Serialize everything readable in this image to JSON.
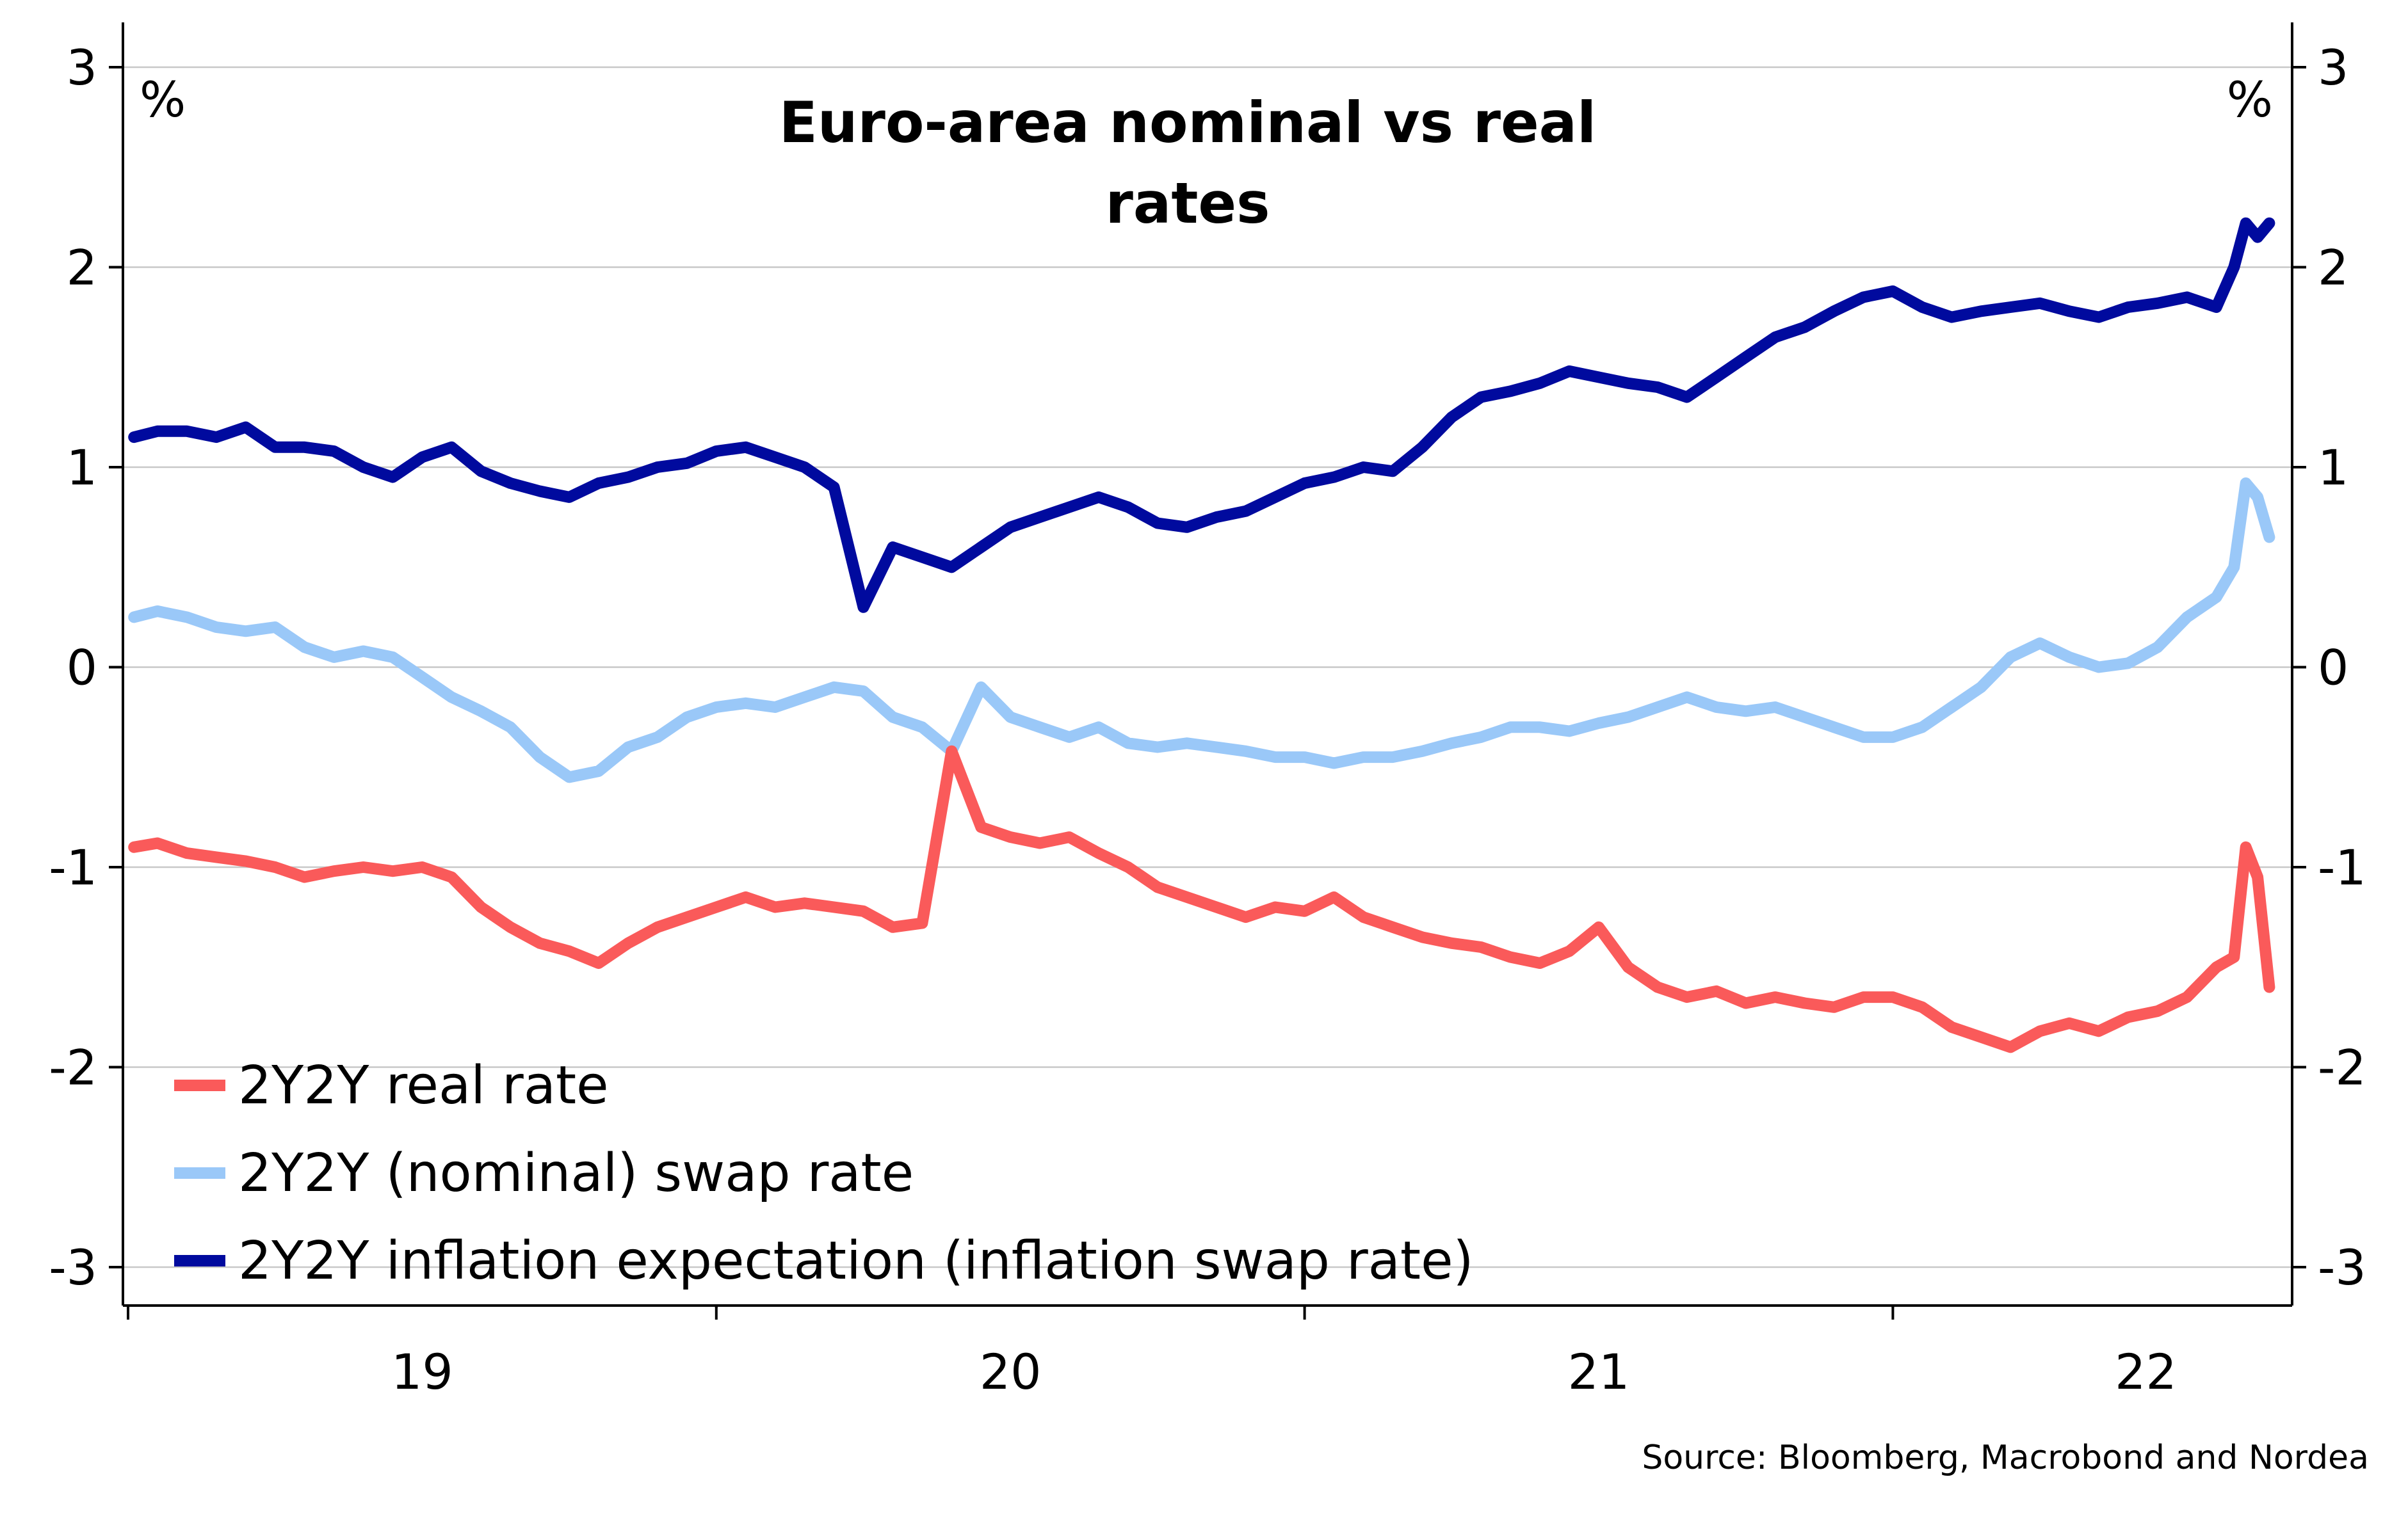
{
  "chart_data": {
    "type": "line",
    "title": "Euro-area nominal vs real rates",
    "title_lines": [
      "Euro-area nominal vs real",
      "rates"
    ],
    "left_unit": "%",
    "right_unit": "%",
    "ylim": [
      -3.15,
      3.0
    ],
    "y_ticks": [
      3,
      2,
      1,
      0,
      -1,
      -2,
      -3
    ],
    "y_tick_labels": [
      "3",
      "2",
      "1",
      "0",
      "-1",
      "-2",
      "-3"
    ],
    "xlim": [
      2018.5,
      2022.17
    ],
    "x_year_boundaries": [
      2018.5,
      2019.5,
      2020.5,
      2021.5
    ],
    "x_tick_labels": [
      "19",
      "20",
      "21",
      "22"
    ],
    "x_label_positions": [
      2019.0,
      2020.0,
      2021.0,
      2021.93
    ],
    "grid": true,
    "legend_position": "bottom-left",
    "source": "Source: Bloomberg, Macrobond and Nordea",
    "series": [
      {
        "name": "2Y2Y real rate",
        "color": "#fa5a5a",
        "x": [
          2018.51,
          2018.55,
          2018.6,
          2018.65,
          2018.7,
          2018.75,
          2018.8,
          2018.85,
          2018.9,
          2018.95,
          2019.0,
          2019.05,
          2019.1,
          2019.15,
          2019.2,
          2019.25,
          2019.3,
          2019.35,
          2019.4,
          2019.45,
          2019.5,
          2019.55,
          2019.6,
          2019.65,
          2019.7,
          2019.75,
          2019.8,
          2019.85,
          2019.9,
          2019.95,
          2020.0,
          2020.05,
          2020.1,
          2020.15,
          2020.2,
          2020.25,
          2020.3,
          2020.35,
          2020.4,
          2020.45,
          2020.5,
          2020.55,
          2020.6,
          2020.65,
          2020.7,
          2020.75,
          2020.8,
          2020.85,
          2020.9,
          2020.95,
          2021.0,
          2021.05,
          2021.1,
          2021.15,
          2021.2,
          2021.25,
          2021.3,
          2021.35,
          2021.4,
          2021.45,
          2021.5,
          2021.55,
          2021.6,
          2021.65,
          2021.7,
          2021.75,
          2021.8,
          2021.85,
          2021.9,
          2021.95,
          2022.0,
          2022.05,
          2022.08,
          2022.1,
          2022.12,
          2022.14
        ],
        "y": [
          -0.9,
          -0.88,
          -0.93,
          -0.95,
          -0.97,
          -1.0,
          -1.05,
          -1.02,
          -1.0,
          -1.02,
          -1.0,
          -1.05,
          -1.2,
          -1.3,
          -1.38,
          -1.42,
          -1.48,
          -1.38,
          -1.3,
          -1.25,
          -1.2,
          -1.15,
          -1.2,
          -1.18,
          -1.2,
          -1.22,
          -1.3,
          -1.28,
          -0.42,
          -0.8,
          -0.85,
          -0.88,
          -0.85,
          -0.93,
          -1.0,
          -1.1,
          -1.15,
          -1.2,
          -1.25,
          -1.2,
          -1.22,
          -1.15,
          -1.25,
          -1.3,
          -1.35,
          -1.38,
          -1.4,
          -1.45,
          -1.48,
          -1.42,
          -1.3,
          -1.5,
          -1.6,
          -1.65,
          -1.62,
          -1.68,
          -1.65,
          -1.68,
          -1.7,
          -1.65,
          -1.65,
          -1.7,
          -1.8,
          -1.85,
          -1.9,
          -1.82,
          -1.78,
          -1.82,
          -1.75,
          -1.72,
          -1.65,
          -1.5,
          -1.45,
          -0.9,
          -1.05,
          -1.6
        ]
      },
      {
        "name": "2Y2Y (nominal) swap rate",
        "color": "#9ac8f8",
        "x": [
          2018.51,
          2018.55,
          2018.6,
          2018.65,
          2018.7,
          2018.75,
          2018.8,
          2018.85,
          2018.9,
          2018.95,
          2019.0,
          2019.05,
          2019.1,
          2019.15,
          2019.2,
          2019.25,
          2019.3,
          2019.35,
          2019.4,
          2019.45,
          2019.5,
          2019.55,
          2019.6,
          2019.65,
          2019.7,
          2019.75,
          2019.8,
          2019.85,
          2019.9,
          2019.95,
          2020.0,
          2020.05,
          2020.1,
          2020.15,
          2020.2,
          2020.25,
          2020.3,
          2020.35,
          2020.4,
          2020.45,
          2020.5,
          2020.55,
          2020.6,
          2020.65,
          2020.7,
          2020.75,
          2020.8,
          2020.85,
          2020.9,
          2020.95,
          2021.0,
          2021.05,
          2021.1,
          2021.15,
          2021.2,
          2021.25,
          2021.3,
          2021.35,
          2021.4,
          2021.45,
          2021.5,
          2021.55,
          2021.6,
          2021.65,
          2021.7,
          2021.75,
          2021.8,
          2021.85,
          2021.9,
          2021.95,
          2022.0,
          2022.05,
          2022.08,
          2022.1,
          2022.12,
          2022.14
        ],
        "y": [
          0.25,
          0.28,
          0.25,
          0.2,
          0.18,
          0.2,
          0.1,
          0.05,
          0.08,
          0.05,
          -0.05,
          -0.15,
          -0.22,
          -0.3,
          -0.45,
          -0.55,
          -0.52,
          -0.4,
          -0.35,
          -0.25,
          -0.2,
          -0.18,
          -0.2,
          -0.15,
          -0.1,
          -0.12,
          -0.25,
          -0.3,
          -0.42,
          -0.1,
          -0.25,
          -0.3,
          -0.35,
          -0.3,
          -0.38,
          -0.4,
          -0.38,
          -0.4,
          -0.42,
          -0.45,
          -0.45,
          -0.48,
          -0.45,
          -0.45,
          -0.42,
          -0.38,
          -0.35,
          -0.3,
          -0.3,
          -0.32,
          -0.28,
          -0.25,
          -0.2,
          -0.15,
          -0.2,
          -0.22,
          -0.2,
          -0.25,
          -0.3,
          -0.35,
          -0.35,
          -0.3,
          -0.2,
          -0.1,
          0.05,
          0.12,
          0.05,
          0.0,
          0.02,
          0.1,
          0.25,
          0.35,
          0.5,
          0.92,
          0.85,
          0.65
        ]
      },
      {
        "name": "2Y2Y inflation expectation (inflation swap rate)",
        "color": "#000a9e",
        "x": [
          2018.51,
          2018.55,
          2018.6,
          2018.65,
          2018.7,
          2018.75,
          2018.8,
          2018.85,
          2018.9,
          2018.95,
          2019.0,
          2019.05,
          2019.1,
          2019.15,
          2019.2,
          2019.25,
          2019.3,
          2019.35,
          2019.4,
          2019.45,
          2019.5,
          2019.55,
          2019.6,
          2019.65,
          2019.7,
          2019.75,
          2019.8,
          2019.85,
          2019.9,
          2019.95,
          2020.0,
          2020.05,
          2020.1,
          2020.15,
          2020.2,
          2020.25,
          2020.3,
          2020.35,
          2020.4,
          2020.45,
          2020.5,
          2020.55,
          2020.6,
          2020.65,
          2020.7,
          2020.75,
          2020.8,
          2020.85,
          2020.9,
          2020.95,
          2021.0,
          2021.05,
          2021.1,
          2021.15,
          2021.2,
          2021.25,
          2021.3,
          2021.35,
          2021.4,
          2021.45,
          2021.5,
          2021.55,
          2021.6,
          2021.65,
          2021.7,
          2021.75,
          2021.8,
          2021.85,
          2021.9,
          2021.95,
          2022.0,
          2022.05,
          2022.08,
          2022.1,
          2022.12,
          2022.14
        ],
        "y": [
          1.15,
          1.18,
          1.18,
          1.15,
          1.2,
          1.1,
          1.1,
          1.08,
          1.0,
          0.95,
          1.05,
          1.1,
          0.98,
          0.92,
          0.88,
          0.85,
          0.92,
          0.95,
          1.0,
          1.02,
          1.08,
          1.1,
          1.05,
          1.0,
          0.9,
          0.3,
          0.6,
          0.55,
          0.5,
          0.6,
          0.7,
          0.75,
          0.8,
          0.85,
          0.8,
          0.72,
          0.7,
          0.75,
          0.78,
          0.85,
          0.92,
          0.95,
          1.0,
          0.98,
          1.1,
          1.25,
          1.35,
          1.38,
          1.42,
          1.48,
          1.45,
          1.42,
          1.4,
          1.35,
          1.45,
          1.55,
          1.65,
          1.7,
          1.78,
          1.85,
          1.88,
          1.8,
          1.75,
          1.78,
          1.8,
          1.82,
          1.78,
          1.75,
          1.8,
          1.82,
          1.85,
          1.8,
          2.0,
          2.22,
          2.15,
          2.22
        ]
      }
    ]
  }
}
